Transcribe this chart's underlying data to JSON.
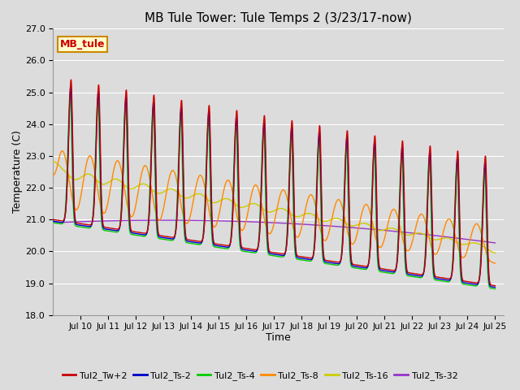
{
  "title": "MB Tule Tower: Tule Temps 2 (3/23/17-now)",
  "xlabel": "Time",
  "ylabel": "Temperature (C)",
  "ylim": [
    18.0,
    27.0
  ],
  "yticks": [
    18.0,
    19.0,
    20.0,
    21.0,
    22.0,
    23.0,
    24.0,
    25.0,
    26.0,
    27.0
  ],
  "background_color": "#dcdcdc",
  "plot_bg_color": "#dcdcdc",
  "grid_color": "#ffffff",
  "series_colors": {
    "Tul2_Tw+2": "#cc0000",
    "Tul2_Ts-2": "#0000cc",
    "Tul2_Ts-4": "#00cc00",
    "Tul2_Ts-8": "#ff8800",
    "Tul2_Ts-16": "#cccc00",
    "Tul2_Ts-32": "#9933cc"
  },
  "legend_box": {
    "text": "MB_tule",
    "bg_color": "#ffffcc",
    "border_color": "#cc8800",
    "text_color": "#cc0000"
  }
}
